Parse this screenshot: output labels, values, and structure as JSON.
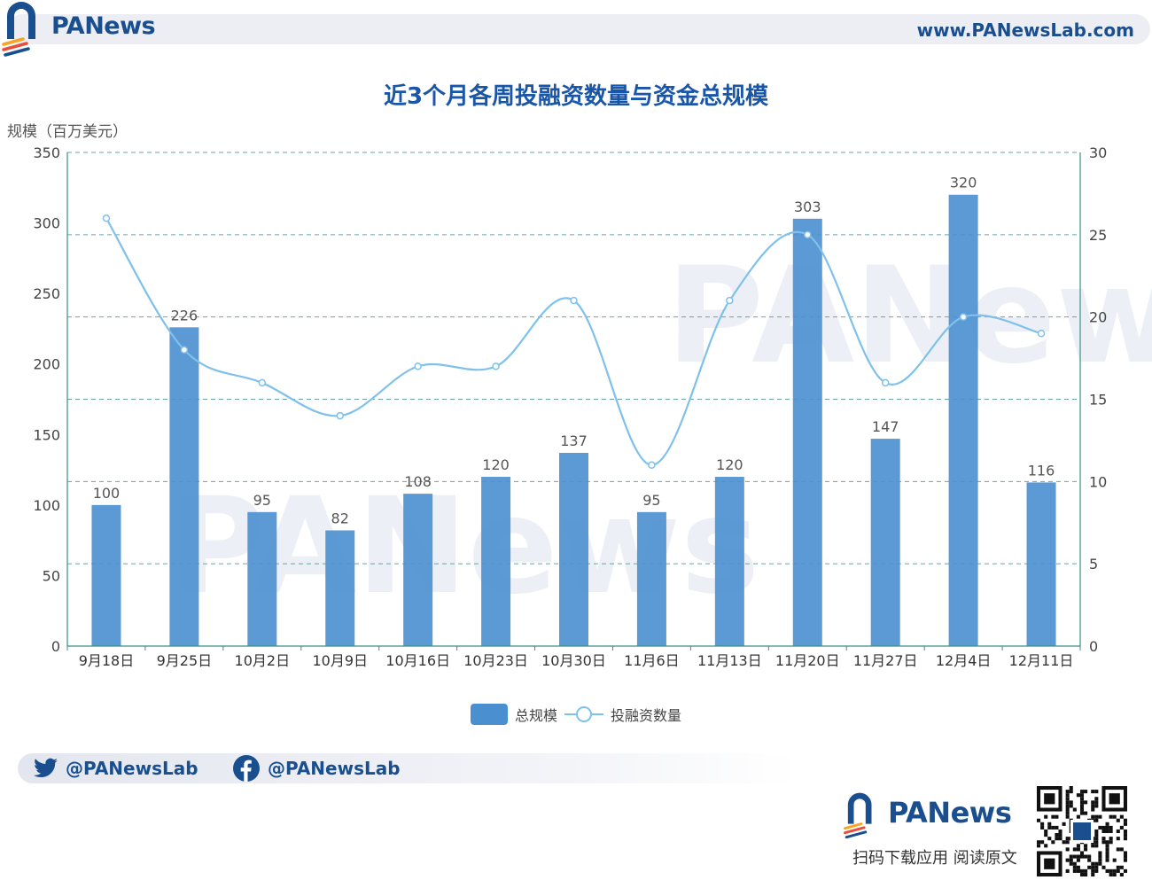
{
  "brand": {
    "name": "PANews",
    "url": "www.PANewsLab.com",
    "download": "扫码下载应用  阅读原文"
  },
  "social": {
    "twitter": "@PANewsLab",
    "facebook": "@PANewsLab"
  },
  "colors": {
    "bar": "#4a8fd0",
    "line": "#7fc1ea",
    "brand": "#1a4f8f",
    "title": "#1a56a8"
  },
  "chart_data": {
    "type": "bar",
    "title": "近3个月各周投融资数量与资金总规模",
    "ylabel": "规模（百万美元）",
    "ylim": [
      0,
      350
    ],
    "y2lim": [
      0,
      30
    ],
    "yticks": [
      "0",
      "50",
      "100",
      "150",
      "200",
      "250",
      "300",
      "350"
    ],
    "y2ticks": [
      "0",
      "5",
      "10",
      "15",
      "20",
      "25",
      "30"
    ],
    "categories": [
      "9月18日",
      "9月25日",
      "10月2日",
      "10月9日",
      "10月16日",
      "10月23日",
      "10月30日",
      "11月6日",
      "11月13日",
      "11月20日",
      "11月27日",
      "12月4日",
      "12月11日"
    ],
    "series": [
      {
        "name": "总规模",
        "type": "bar",
        "axis": "left",
        "values": [
          100,
          226,
          95,
          82,
          108,
          120,
          137,
          95,
          120,
          303,
          147,
          320,
          116
        ]
      },
      {
        "name": "投融资数量",
        "type": "line",
        "axis": "right",
        "smooth": true,
        "values": [
          26,
          18,
          16,
          14,
          17,
          17,
          21,
          11,
          21,
          25,
          16,
          20,
          19
        ]
      }
    ],
    "legend": "bottom-center",
    "grid": true
  }
}
